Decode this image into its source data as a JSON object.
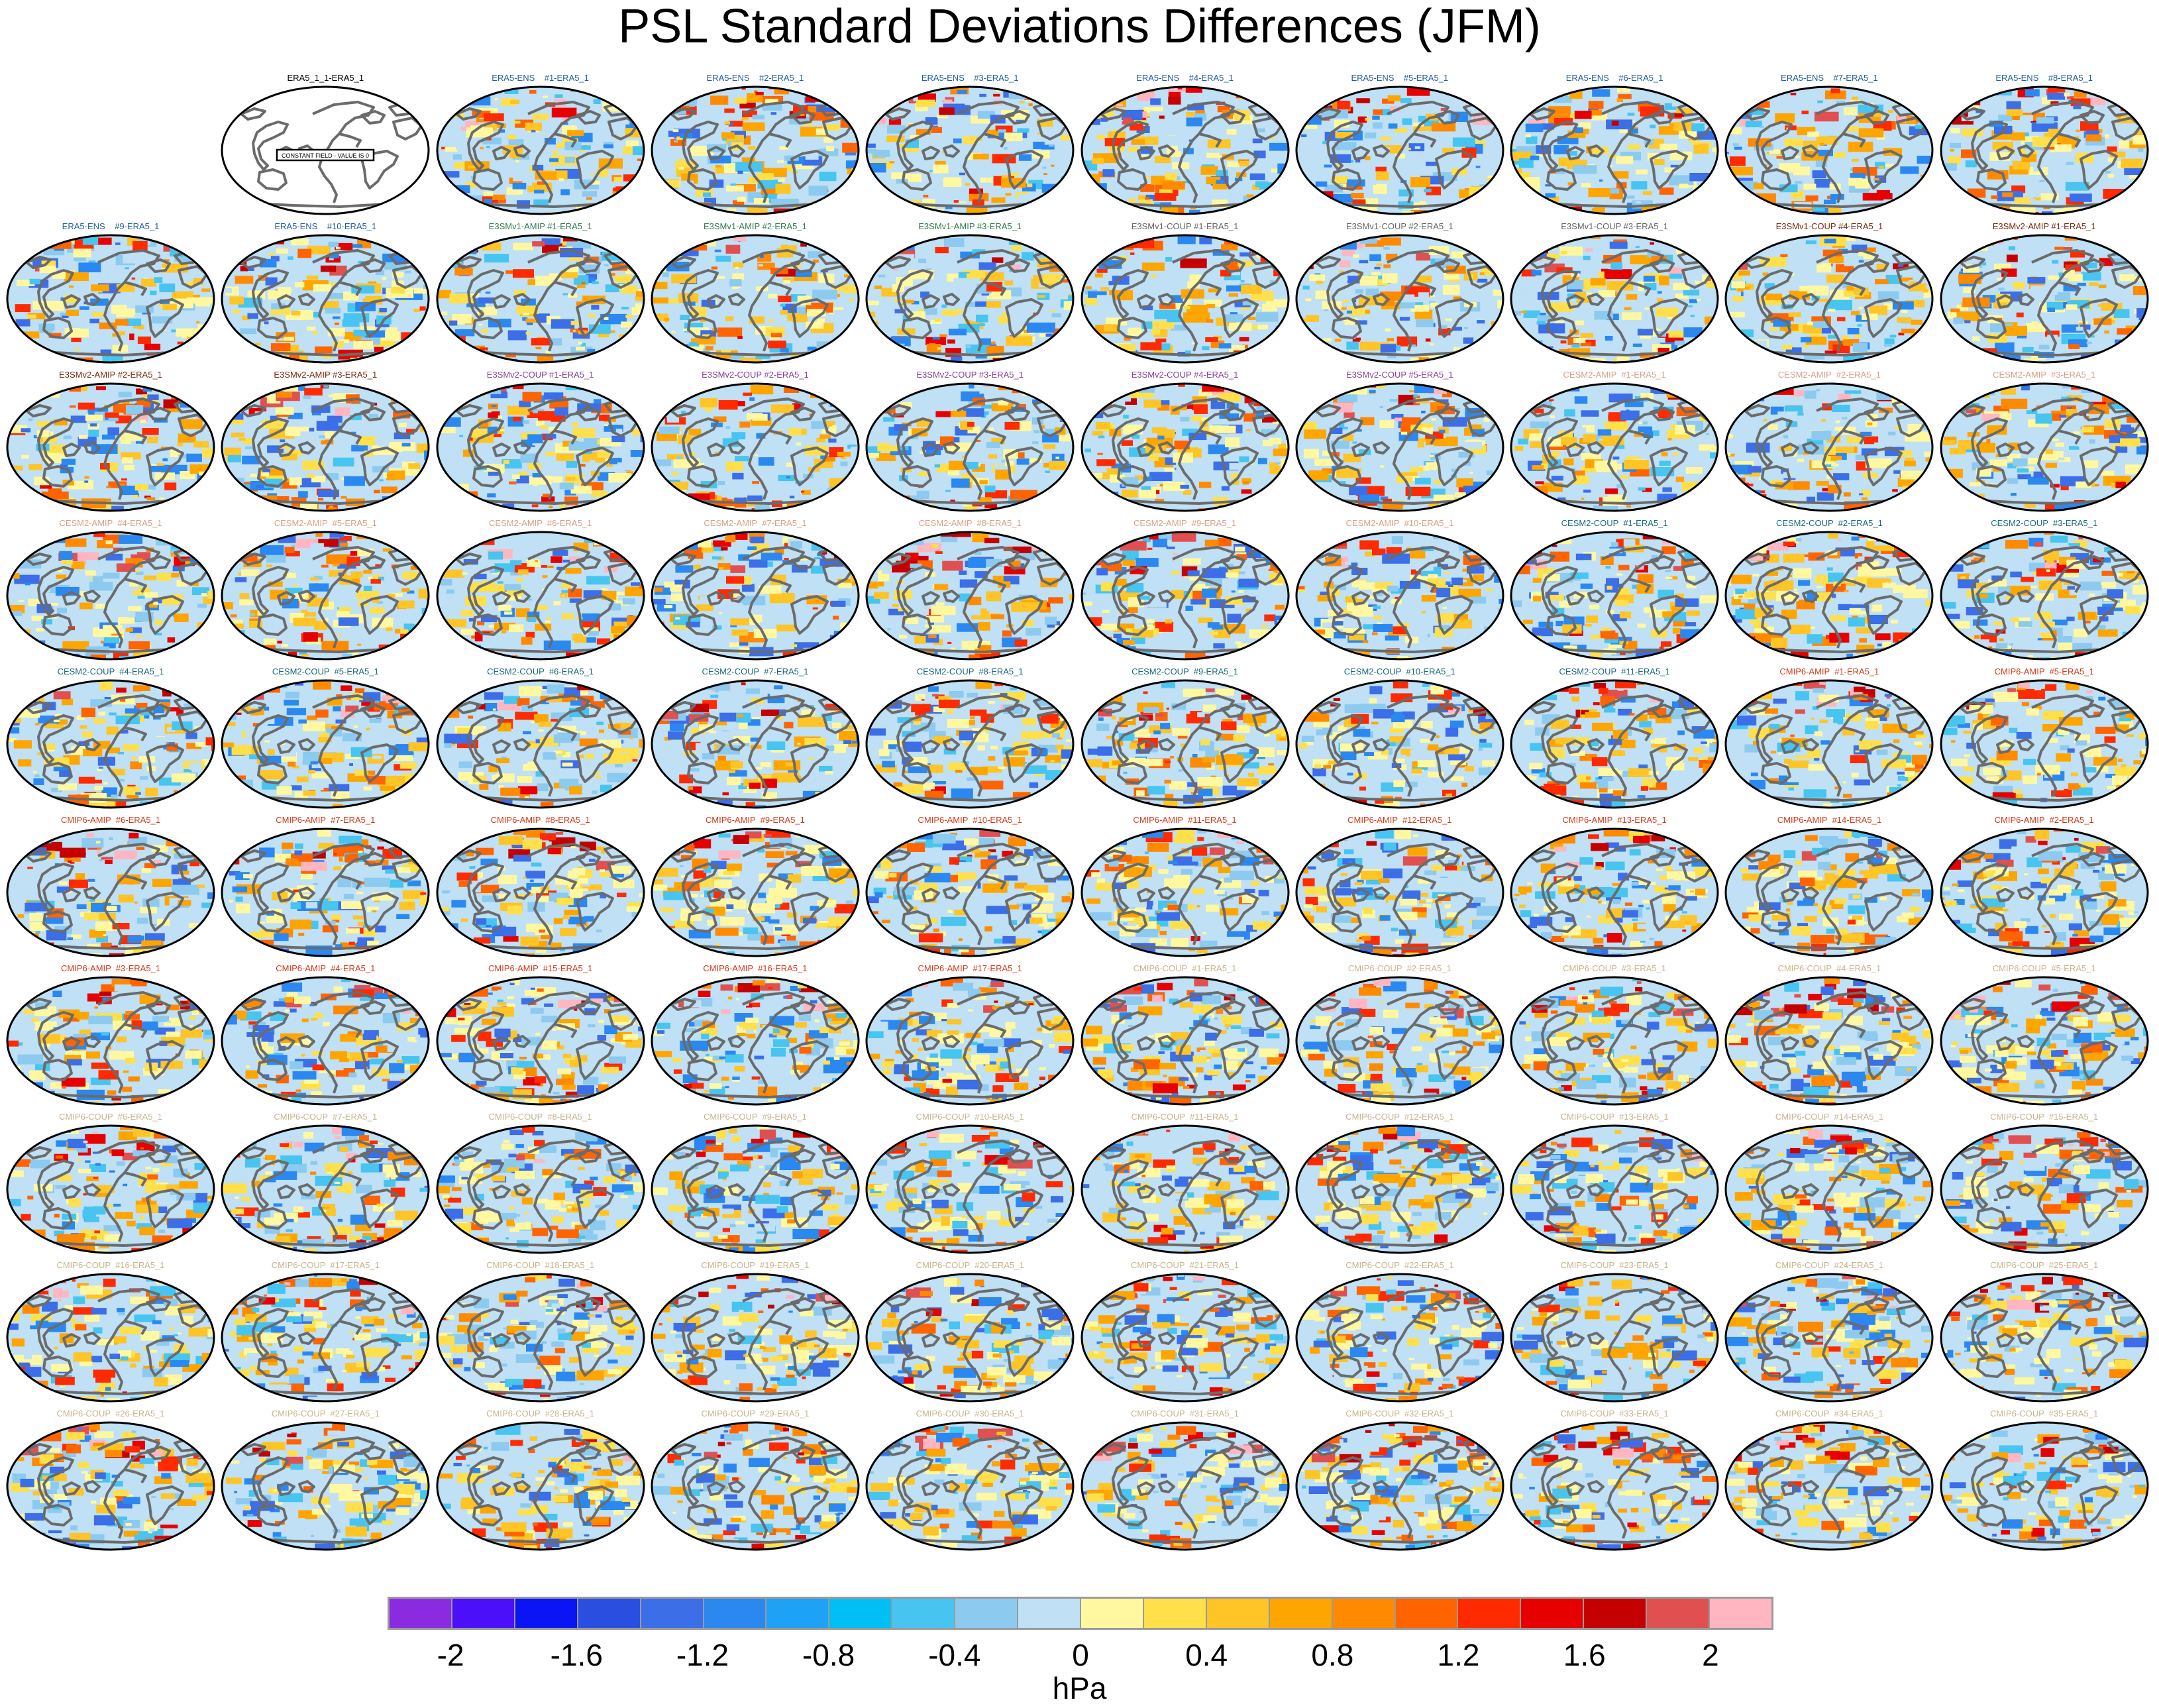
{
  "title": "PSL Standard Deviations Differences (JFM)",
  "unit_label": "hPa",
  "colorbar": {
    "colors": [
      "#8a2be2",
      "#4b0ffa",
      "#0a14f5",
      "#2a4fe0",
      "#3c6ee8",
      "#2b88f0",
      "#1ea2f5",
      "#00bff5",
      "#48c4f0",
      "#8ccaf0",
      "#bfe0f5",
      "#fff8a0",
      "#ffe04a",
      "#ffc425",
      "#ffa500",
      "#ff8a00",
      "#ff6400",
      "#ff2a00",
      "#e60000",
      "#c40000",
      "#e05050",
      "#ffb6c1"
    ],
    "tick_labels": [
      "-2",
      "-1.6",
      "-1.2",
      "-0.8",
      "-0.4",
      "0",
      "0.4",
      "0.8",
      "1.2",
      "1.6",
      "2"
    ]
  },
  "panels": [
    {
      "title": "ERA5_1_1-ERA5_1",
      "color": "#000000",
      "reference": true,
      "reference_text": "CONSTANT FIELD - VALUE IS 0"
    },
    {
      "title": "ERA5-ENS    #1-ERA5_1",
      "color": "#1f5f9f",
      "reference": false
    },
    {
      "title": "ERA5-ENS    #2-ERA5_1",
      "color": "#1f5f9f",
      "reference": false
    },
    {
      "title": "ERA5-ENS    #3-ERA5_1",
      "color": "#1f5f9f",
      "reference": false
    },
    {
      "title": "ERA5-ENS    #4-ERA5_1",
      "color": "#1f5f9f",
      "reference": false
    },
    {
      "title": "ERA5-ENS    #5-ERA5_1",
      "color": "#1f5f9f",
      "reference": false
    },
    {
      "title": "ERA5-ENS    #6-ERA5_1",
      "color": "#1f5f9f",
      "reference": false
    },
    {
      "title": "ERA5-ENS    #7-ERA5_1",
      "color": "#1f5f9f",
      "reference": false
    },
    {
      "title": "ERA5-ENS    #8-ERA5_1",
      "color": "#1f5f9f",
      "reference": false
    },
    {
      "title": "ERA5-ENS    #9-ERA5_1",
      "color": "#1f5f9f",
      "reference": false
    },
    {
      "title": "ERA5-ENS    #10-ERA5_1",
      "color": "#1f5f9f",
      "reference": false
    },
    {
      "title": "E3SMv1-AMIP #1-ERA5_1",
      "color": "#2e7d4f",
      "reference": false
    },
    {
      "title": "E3SMv1-AMIP #2-ERA5_1",
      "color": "#2e7d4f",
      "reference": false
    },
    {
      "title": "E3SMv1-AMIP #3-ERA5_1",
      "color": "#2e7d4f",
      "reference": false
    },
    {
      "title": "E3SMv1-COUP #1-ERA5_1",
      "color": "#666666",
      "reference": false
    },
    {
      "title": "E3SMv1-COUP #2-ERA5_1",
      "color": "#666666",
      "reference": false
    },
    {
      "title": "E3SMv1-COUP #3-ERA5_1",
      "color": "#666666",
      "reference": false
    },
    {
      "title": "E3SMv1-COUP #4-ERA5_1",
      "color": "#7a2a10",
      "reference": false
    },
    {
      "title": "E3SMv2-AMIP #1-ERA5_1",
      "color": "#7a2a10",
      "reference": false
    },
    {
      "title": "E3SMv2-AMIP #2-ERA5_1",
      "color": "#7a2a10",
      "reference": false
    },
    {
      "title": "E3SMv2-AMIP #3-ERA5_1",
      "color": "#7a2a10",
      "reference": false
    },
    {
      "title": "E3SMv2-COUP #1-ERA5_1",
      "color": "#8a3fa0",
      "reference": false
    },
    {
      "title": "E3SMv2-COUP #2-ERA5_1",
      "color": "#8a3fa0",
      "reference": false
    },
    {
      "title": "E3SMv2-COUP #3-ERA5_1",
      "color": "#8a3fa0",
      "reference": false
    },
    {
      "title": "E3SMv2-COUP #4-ERA5_1",
      "color": "#8a3fa0",
      "reference": false
    },
    {
      "title": "E3SMv2-COUP #5-ERA5_1",
      "color": "#8a3fa0",
      "reference": false
    },
    {
      "title": "CESM2-AMIP  #1-ERA5_1",
      "color": "#d9a08a",
      "reference": false
    },
    {
      "title": "CESM2-AMIP  #2-ERA5_1",
      "color": "#d9a08a",
      "reference": false
    },
    {
      "title": "CESM2-AMIP  #3-ERA5_1",
      "color": "#d9a08a",
      "reference": false
    },
    {
      "title": "CESM2-AMIP  #4-ERA5_1",
      "color": "#d9a08a",
      "reference": false
    },
    {
      "title": "CESM2-AMIP  #5-ERA5_1",
      "color": "#d9a08a",
      "reference": false
    },
    {
      "title": "CESM2-AMIP  #6-ERA5_1",
      "color": "#d9a08a",
      "reference": false
    },
    {
      "title": "CESM2-AMIP  #7-ERA5_1",
      "color": "#d9a08a",
      "reference": false
    },
    {
      "title": "CESM2-AMIP  #8-ERA5_1",
      "color": "#d9a08a",
      "reference": false
    },
    {
      "title": "CESM2-AMIP  #9-ERA5_1",
      "color": "#d9a08a",
      "reference": false
    },
    {
      "title": "CESM2-AMIP  #10-ERA5_1",
      "color": "#d9a08a",
      "reference": false
    },
    {
      "title": "CESM2-COUP  #1-ERA5_1",
      "color": "#1a6a7a",
      "reference": false
    },
    {
      "title": "CESM2-COUP  #2-ERA5_1",
      "color": "#1a6a7a",
      "reference": false
    },
    {
      "title": "CESM2-COUP  #3-ERA5_1",
      "color": "#1a6a7a",
      "reference": false
    },
    {
      "title": "CESM2-COUP  #4-ERA5_1",
      "color": "#1a6a7a",
      "reference": false
    },
    {
      "title": "CESM2-COUP  #5-ERA5_1",
      "color": "#1a6a7a",
      "reference": false
    },
    {
      "title": "CESM2-COUP  #6-ERA5_1",
      "color": "#1a6a7a",
      "reference": false
    },
    {
      "title": "CESM2-COUP  #7-ERA5_1",
      "color": "#1a6a7a",
      "reference": false
    },
    {
      "title": "CESM2-COUP  #8-ERA5_1",
      "color": "#1a6a7a",
      "reference": false
    },
    {
      "title": "CESM2-COUP  #9-ERA5_1",
      "color": "#1a6a7a",
      "reference": false
    },
    {
      "title": "CESM2-COUP  #10-ERA5_1",
      "color": "#1a6a7a",
      "reference": false
    },
    {
      "title": "CESM2-COUP  #11-ERA5_1",
      "color": "#1a6a7a",
      "reference": false
    },
    {
      "title": "CMIP6-AMIP  #1-ERA5_1",
      "color": "#d43a1a",
      "reference": false
    },
    {
      "title": "CMIP6-AMIP  #5-ERA5_1",
      "color": "#d43a1a",
      "reference": false
    },
    {
      "title": "CMIP6-AMIP  #6-ERA5_1",
      "color": "#d43a1a",
      "reference": false
    },
    {
      "title": "CMIP6-AMIP  #7-ERA5_1",
      "color": "#d43a1a",
      "reference": false
    },
    {
      "title": "CMIP6-AMIP  #8-ERA5_1",
      "color": "#d43a1a",
      "reference": false
    },
    {
      "title": "CMIP6-AMIP  #9-ERA5_1",
      "color": "#d43a1a",
      "reference": false
    },
    {
      "title": "CMIP6-AMIP  #10-ERA5_1",
      "color": "#d43a1a",
      "reference": false
    },
    {
      "title": "CMIP6-AMIP  #11-ERA5_1",
      "color": "#d43a1a",
      "reference": false
    },
    {
      "title": "CMIP6-AMIP  #12-ERA5_1",
      "color": "#d43a1a",
      "reference": false
    },
    {
      "title": "CMIP6-AMIP  #13-ERA5_1",
      "color": "#d43a1a",
      "reference": false
    },
    {
      "title": "CMIP6-AMIP  #14-ERA5_1",
      "color": "#d43a1a",
      "reference": false
    },
    {
      "title": "CMIP6-AMIP  #2-ERA5_1",
      "color": "#d43a1a",
      "reference": false
    },
    {
      "title": "CMIP6-AMIP  #3-ERA5_1",
      "color": "#d43a1a",
      "reference": false
    },
    {
      "title": "CMIP6-AMIP  #4-ERA5_1",
      "color": "#d43a1a",
      "reference": false
    },
    {
      "title": "CMIP6-AMIP  #15-ERA5_1",
      "color": "#d43a1a",
      "reference": false
    },
    {
      "title": "CMIP6-AMIP  #16-ERA5_1",
      "color": "#d43a1a",
      "reference": false
    },
    {
      "title": "CMIP6-AMIP  #17-ERA5_1",
      "color": "#d43a1a",
      "reference": false
    },
    {
      "title": "CMIP6-COUP  #1-ERA5_1",
      "color": "#c9b48c",
      "reference": false
    },
    {
      "title": "CMIP6-COUP  #2-ERA5_1",
      "color": "#c9b48c",
      "reference": false
    },
    {
      "title": "CMIP6-COUP  #3-ERA5_1",
      "color": "#c9b48c",
      "reference": false
    },
    {
      "title": "CMIP6-COUP  #4-ERA5_1",
      "color": "#c9b48c",
      "reference": false
    },
    {
      "title": "CMIP6-COUP  #5-ERA5_1",
      "color": "#c9b48c",
      "reference": false
    },
    {
      "title": "CMIP6-COUP  #6-ERA5_1",
      "color": "#c9b48c",
      "reference": false
    },
    {
      "title": "CMIP6-COUP  #7-ERA5_1",
      "color": "#c9b48c",
      "reference": false
    },
    {
      "title": "CMIP6-COUP  #8-ERA5_1",
      "color": "#c9b48c",
      "reference": false
    },
    {
      "title": "CMIP6-COUP  #9-ERA5_1",
      "color": "#c9b48c",
      "reference": false
    },
    {
      "title": "CMIP6-COUP  #10-ERA5_1",
      "color": "#c9b48c",
      "reference": false
    },
    {
      "title": "CMIP6-COUP  #11-ERA5_1",
      "color": "#c9b48c",
      "reference": false
    },
    {
      "title": "CMIP6-COUP  #12-ERA5_1",
      "color": "#c9b48c",
      "reference": false
    },
    {
      "title": "CMIP6-COUP  #13-ERA5_1",
      "color": "#c9b48c",
      "reference": false
    },
    {
      "title": "CMIP6-COUP  #14-ERA5_1",
      "color": "#c9b48c",
      "reference": false
    },
    {
      "title": "CMIP6-COUP  #15-ERA5_1",
      "color": "#c9b48c",
      "reference": false
    },
    {
      "title": "CMIP6-COUP  #16-ERA5_1",
      "color": "#c9b48c",
      "reference": false
    },
    {
      "title": "CMIP6-COUP  #17-ERA5_1",
      "color": "#c9b48c",
      "reference": false
    },
    {
      "title": "CMIP6-COUP  #18-ERA5_1",
      "color": "#c9b48c",
      "reference": false
    },
    {
      "title": "CMIP6-COUP  #19-ERA5_1",
      "color": "#c9b48c",
      "reference": false
    },
    {
      "title": "CMIP6-COUP  #20-ERA5_1",
      "color": "#c9b48c",
      "reference": false
    },
    {
      "title": "CMIP6-COUP  #21-ERA5_1",
      "color": "#c9b48c",
      "reference": false
    },
    {
      "title": "CMIP6-COUP  #22-ERA5_1",
      "color": "#c9b48c",
      "reference": false
    },
    {
      "title": "CMIP6-COUP  #23-ERA5_1",
      "color": "#c9b48c",
      "reference": false
    },
    {
      "title": "CMIP6-COUP  #24-ERA5_1",
      "color": "#c9b48c",
      "reference": false
    },
    {
      "title": "CMIP6-COUP  #25-ERA5_1",
      "color": "#c9b48c",
      "reference": false
    },
    {
      "title": "CMIP6-COUP  #26-ERA5_1",
      "color": "#c9b48c",
      "reference": false
    },
    {
      "title": "CMIP6-COUP  #27-ERA5_1",
      "color": "#c9b48c",
      "reference": false
    },
    {
      "title": "CMIP6-COUP  #28-ERA5_1",
      "color": "#c9b48c",
      "reference": false
    },
    {
      "title": "CMIP6-COUP  #29-ERA5_1",
      "color": "#c9b48c",
      "reference": false
    },
    {
      "title": "CMIP6-COUP  #30-ERA5_1",
      "color": "#c9b48c",
      "reference": false
    },
    {
      "title": "CMIP6-COUP  #31-ERA5_1",
      "color": "#c9b48c",
      "reference": false
    },
    {
      "title": "CMIP6-COUP  #32-ERA5_1",
      "color": "#c9b48c",
      "reference": false
    },
    {
      "title": "CMIP6-COUP  #33-ERA5_1",
      "color": "#c9b48c",
      "reference": false
    },
    {
      "title": "CMIP6-COUP  #34-ERA5_1",
      "color": "#c9b48c",
      "reference": false
    },
    {
      "title": "CMIP6-COUP  #35-ERA5_1",
      "color": "#c9b48c",
      "reference": false
    }
  ]
}
